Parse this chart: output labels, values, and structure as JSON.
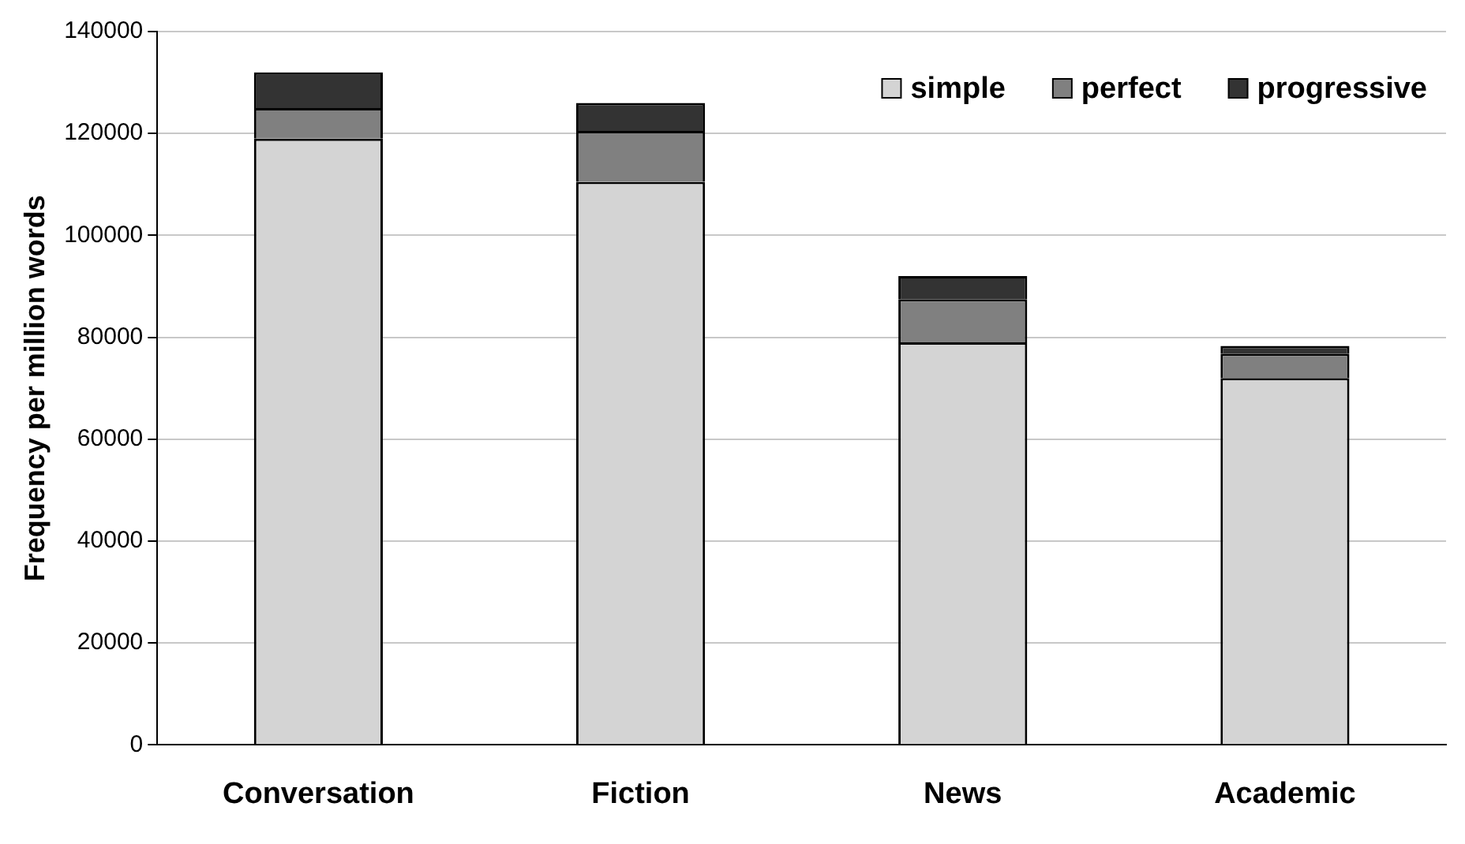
{
  "chart_data": {
    "type": "bar",
    "ylabel": "Frequency per million words",
    "categories": [
      "Conversation",
      "Fiction",
      "News",
      "Academic"
    ],
    "stacked": true,
    "series": [
      {
        "name": "simple",
        "color": "#d4d4d4",
        "values": [
          119000,
          110500,
          79000,
          72000
        ]
      },
      {
        "name": "perfect",
        "color": "#808080",
        "values": [
          6000,
          10000,
          8500,
          4800
        ]
      },
      {
        "name": "progressive",
        "color": "#333333",
        "values": [
          7000,
          5500,
          4500,
          1500
        ]
      }
    ],
    "ylim": [
      0,
      140000
    ],
    "yticks": [
      0,
      20000,
      40000,
      60000,
      80000,
      100000,
      120000,
      140000
    ],
    "grid": "y",
    "legend": "top right"
  }
}
